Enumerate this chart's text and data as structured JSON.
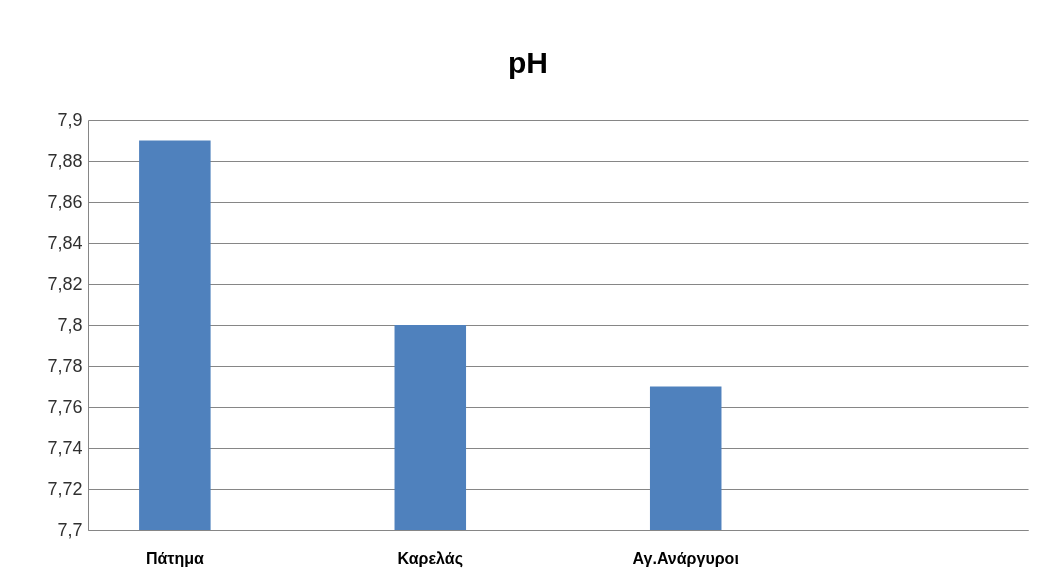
{
  "chart_data": {
    "type": "bar",
    "title": "pH",
    "categories": [
      "Πάτημα",
      "Καρελάς",
      "Αγ.Ανάργυροι",
      null
    ],
    "values": [
      7.89,
      7.8,
      7.77,
      null
    ],
    "color": "#4f81bd",
    "ylim": [
      7.7,
      7.9
    ],
    "yticks": [
      {
        "value": 7.7,
        "label": "7,7"
      },
      {
        "value": 7.72,
        "label": "7,72"
      },
      {
        "value": 7.74,
        "label": "7,74"
      },
      {
        "value": 7.76,
        "label": "7,76"
      },
      {
        "value": 7.78,
        "label": "7,78"
      },
      {
        "value": 7.8,
        "label": "7,8"
      },
      {
        "value": 7.82,
        "label": "7,82"
      },
      {
        "value": 7.84,
        "label": "7,84"
      },
      {
        "value": 7.86,
        "label": "7,86"
      },
      {
        "value": 7.88,
        "label": "7,88"
      },
      {
        "value": 7.9,
        "label": "7,9"
      }
    ],
    "grid": "y"
  }
}
